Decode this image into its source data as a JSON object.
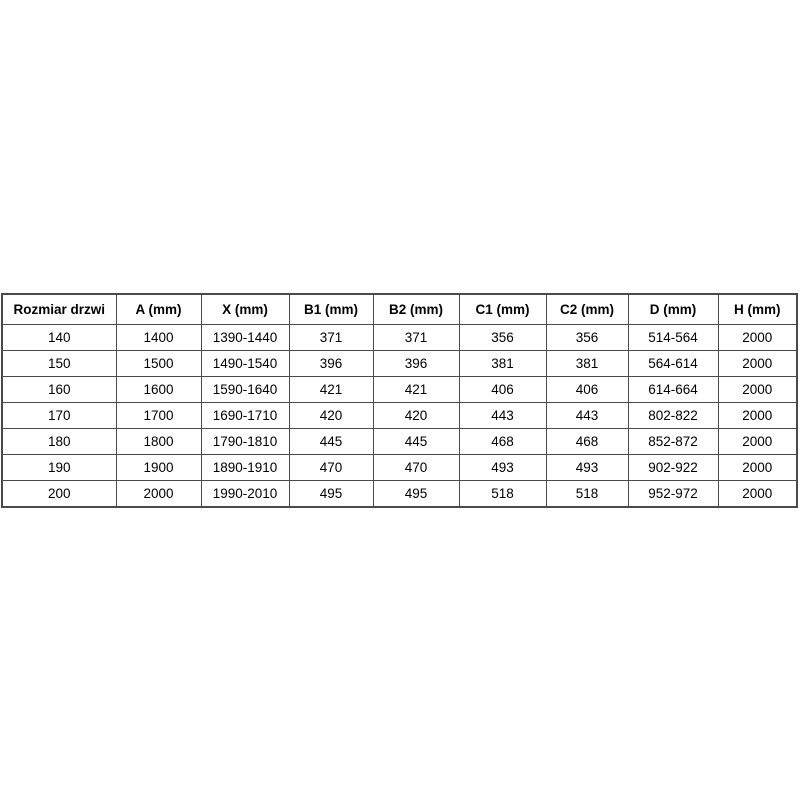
{
  "colors": {
    "background": "#ffffff",
    "border": "#4a4a4a",
    "text": "#000000"
  },
  "table": {
    "headers": [
      "Rozmiar drzwi",
      "A (mm)",
      "X (mm)",
      "B1 (mm)",
      "B2 (mm)",
      "C1 (mm)",
      "C2 (mm)",
      "D (mm)",
      "H (mm)"
    ],
    "rows": [
      [
        "140",
        "1400",
        "1390-1440",
        "371",
        "371",
        "356",
        "356",
        "514-564",
        "2000"
      ],
      [
        "150",
        "1500",
        "1490-1540",
        "396",
        "396",
        "381",
        "381",
        "564-614",
        "2000"
      ],
      [
        "160",
        "1600",
        "1590-1640",
        "421",
        "421",
        "406",
        "406",
        "614-664",
        "2000"
      ],
      [
        "170",
        "1700",
        "1690-1710",
        "420",
        "420",
        "443",
        "443",
        "802-822",
        "2000"
      ],
      [
        "180",
        "1800",
        "1790-1810",
        "445",
        "445",
        "468",
        "468",
        "852-872",
        "2000"
      ],
      [
        "190",
        "1900",
        "1890-1910",
        "470",
        "470",
        "493",
        "493",
        "902-922",
        "2000"
      ],
      [
        "200",
        "2000",
        "1990-2010",
        "495",
        "495",
        "518",
        "518",
        "952-972",
        "2000"
      ]
    ]
  }
}
